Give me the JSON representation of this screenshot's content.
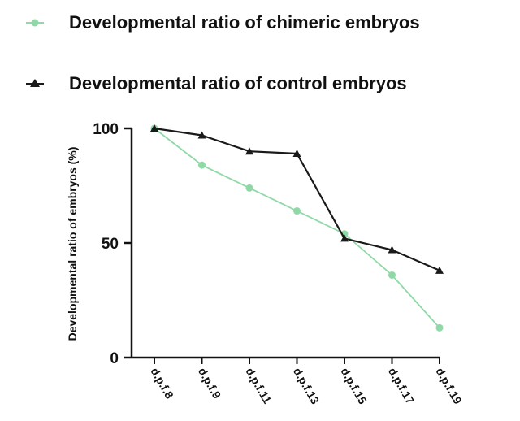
{
  "chart_data": {
    "type": "line",
    "title": "",
    "xlabel": "",
    "ylabel": "Developmental ratio of embryos (%)",
    "categories": [
      "d.p.f.8",
      "d.p.f.9",
      "d.p.f.11",
      "d.p.f.13",
      "d.p.f.15",
      "d.p.f.17",
      "d.p.f.19"
    ],
    "yticks": [
      0,
      50,
      100
    ],
    "ylim": [
      0,
      100
    ],
    "grid": false,
    "legend_position": "top-left",
    "series": [
      {
        "name": "Developmental ratio of chimeric embryos",
        "color": "#8ed9a6",
        "marker": "circle",
        "values": [
          100,
          84,
          74,
          64,
          54,
          36,
          13
        ]
      },
      {
        "name": "Developmental ratio of control embryos",
        "color": "#1a1a1a",
        "marker": "triangle",
        "values": [
          100,
          97,
          90,
          89,
          52,
          47,
          38
        ]
      }
    ]
  }
}
